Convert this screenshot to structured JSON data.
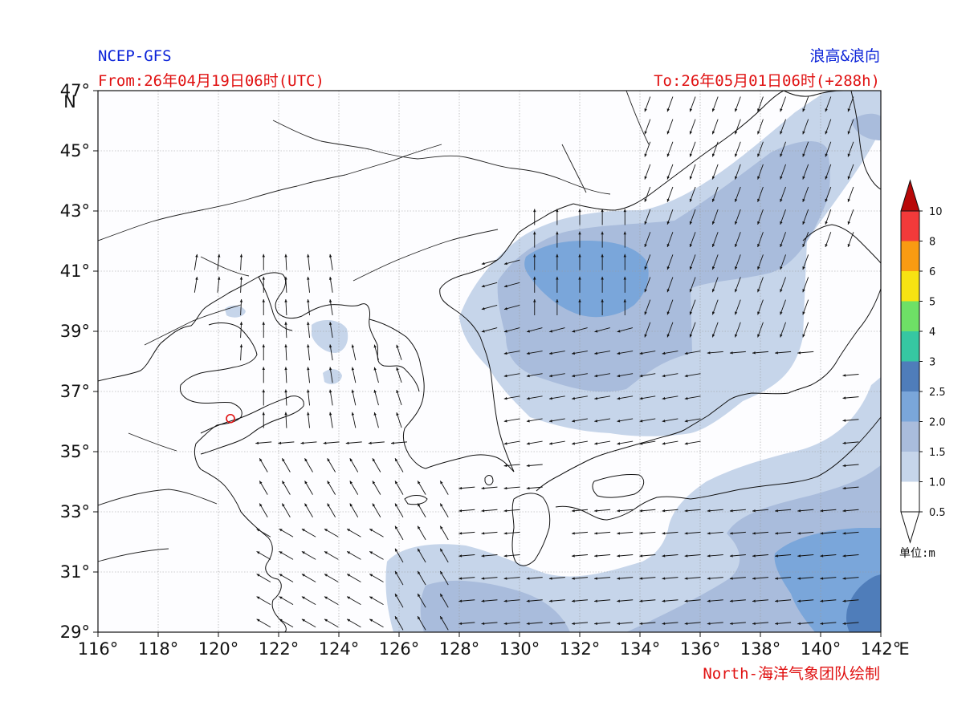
{
  "header": {
    "model": "NCEP-GFS",
    "title": "浪高&浪向",
    "from": "From:26年04月19日06时(UTC)",
    "to": "To:26年05月01日06时(+288h)"
  },
  "footer": {
    "credit": "North-海洋气象团队绘制"
  },
  "map": {
    "lon_range": [
      116,
      142
    ],
    "lat_range": [
      29,
      47
    ],
    "lon_ticks": [
      "116°",
      "118°",
      "120°",
      "122°",
      "124°",
      "126°",
      "128°",
      "130°",
      "132°",
      "134°",
      "136°",
      "138°",
      "140°",
      "142°"
    ],
    "lon_suffix": "E",
    "lat_ticks": [
      "29°",
      "31°",
      "33°",
      "35°",
      "37°",
      "39°",
      "41°",
      "43°",
      "45°",
      "47°"
    ],
    "lat_suffix": "N",
    "grid": "dotted",
    "marker": {
      "name": "location-marker",
      "lon": 120.4,
      "lat": 36.1,
      "color": "#e01010"
    }
  },
  "legend": {
    "unit": "单位:m",
    "levels": [
      "0.5",
      "1.0",
      "1.5",
      "2.0",
      "2.5",
      "3",
      "4",
      "5",
      "6",
      "8",
      "10"
    ],
    "colors": [
      "#ffffff",
      "#c6d5ea",
      "#a9bcdc",
      "#7aa6da",
      "#4f7dba",
      "#36c7a2",
      "#6ee066",
      "#f7e312",
      "#f99b12",
      "#f23a3a",
      "#b80808"
    ]
  }
}
